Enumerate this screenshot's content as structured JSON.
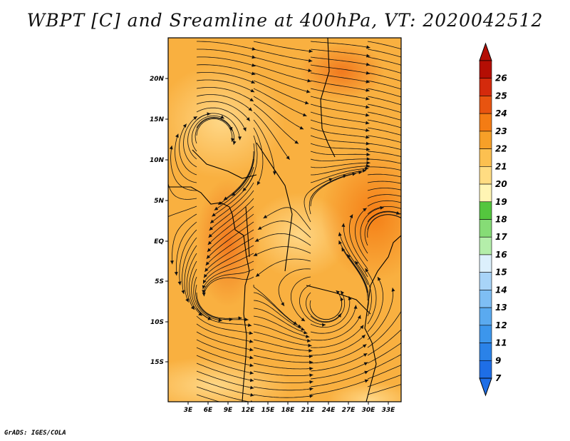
{
  "title": "WBPT [C] and Sreamline at 400hPa, VT: 2020042512",
  "footer": "GrADS: IGES/COLA",
  "map": {
    "x_ticks": [
      "3E",
      "6E",
      "9E",
      "12E",
      "15E",
      "18E",
      "21E",
      "24E",
      "27E",
      "30E",
      "33E"
    ],
    "y_ticks": [
      "20N",
      "15N",
      "10N",
      "5N",
      "EQ",
      "5S",
      "10S",
      "15S"
    ],
    "lon_range": [
      0,
      35
    ],
    "lat_range": [
      -20,
      25
    ]
  },
  "colorbar": {
    "labels": [
      "7",
      "9",
      "11",
      "12",
      "13",
      "14",
      "15",
      "16",
      "17",
      "18",
      "19",
      "20",
      "21",
      "22",
      "23",
      "24",
      "25",
      "26"
    ],
    "colors": [
      "#1e6ee6",
      "#2a82e8",
      "#3c96ec",
      "#5aaaf0",
      "#7ebef4",
      "#a8d4f8",
      "#dcf0fc",
      "#b4eeaa",
      "#86dc76",
      "#54c63e",
      "#fff5b4",
      "#ffdc82",
      "#fcc050",
      "#f7a028",
      "#f47c14",
      "#e85410",
      "#d42a0c",
      "#b40e04"
    ],
    "under_color": "#1e6ee6",
    "over_color": "#b40e04"
  }
}
